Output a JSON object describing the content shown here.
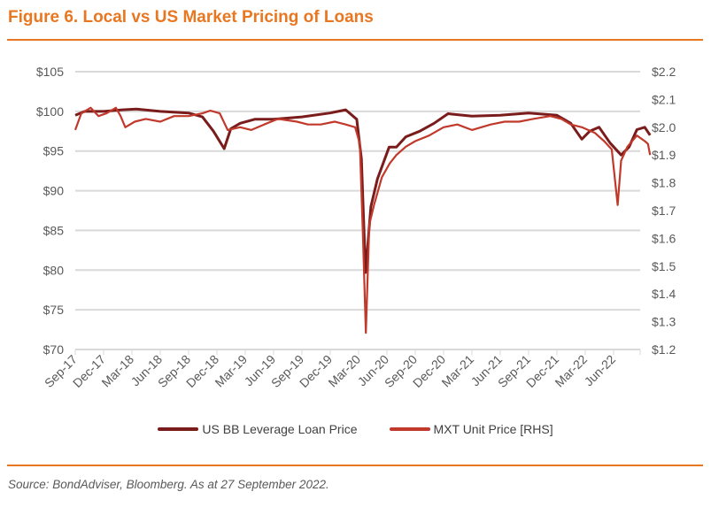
{
  "title": "Figure 6. Local vs US Market Pricing of Loans",
  "source": "Source: BondAdviser, Bloomberg. As at 27 September 2022.",
  "chart_data": {
    "type": "line",
    "title": "Figure 6. Local vs US Market Pricing of Loans",
    "y_left": {
      "range": [
        70,
        105
      ],
      "ticks": [
        "$70",
        "$75",
        "$80",
        "$85",
        "$90",
        "$95",
        "$100",
        "$105"
      ],
      "values": [
        70,
        75,
        80,
        85,
        90,
        95,
        100,
        105
      ]
    },
    "y_right": {
      "range": [
        1.2,
        2.2
      ],
      "ticks": [
        "$1.2",
        "$1.3",
        "$1.4",
        "$1.5",
        "$1.6",
        "$1.7",
        "$1.8",
        "$1.9",
        "$2.0",
        "$2.1",
        "$2.2"
      ],
      "values": [
        1.2,
        1.3,
        1.4,
        1.5,
        1.6,
        1.7,
        1.8,
        1.9,
        2.0,
        2.1,
        2.2
      ]
    },
    "x_ticks": [
      "Sep-17",
      "Dec-17",
      "Mar-18",
      "Jun-18",
      "Sep-18",
      "Dec-18",
      "Mar-19",
      "Jun-19",
      "Sep-19",
      "Dec-19",
      "Mar-20",
      "Jun-20",
      "Sep-20",
      "Dec-20",
      "Mar-21",
      "Jun-21",
      "Sep-21",
      "Dec-21",
      "Mar-22",
      "Jun-22"
    ],
    "grid": "horizontal",
    "legend": "bottom",
    "series": [
      {
        "name": "US BB Leverage Loan Price",
        "axis": "left",
        "color": "#7b1c1c",
        "points": [
          [
            "2017-09-01",
            99.5
          ],
          [
            "2017-10-01",
            100
          ],
          [
            "2017-12-01",
            100
          ],
          [
            "2018-02-01",
            100.2
          ],
          [
            "2018-03-15",
            100.3
          ],
          [
            "2018-06-01",
            100
          ],
          [
            "2018-09-01",
            99.8
          ],
          [
            "2018-10-15",
            99.3
          ],
          [
            "2018-11-20",
            97.5
          ],
          [
            "2018-12-24",
            95.3
          ],
          [
            "2019-01-15",
            97.8
          ],
          [
            "2019-02-15",
            98.5
          ],
          [
            "2019-04-01",
            99
          ],
          [
            "2019-06-01",
            99
          ],
          [
            "2019-09-01",
            99.3
          ],
          [
            "2019-12-01",
            99.8
          ],
          [
            "2020-01-20",
            100.2
          ],
          [
            "2020-02-25",
            99
          ],
          [
            "2020-03-10",
            94
          ],
          [
            "2020-03-23",
            79.7
          ],
          [
            "2020-04-10",
            88
          ],
          [
            "2020-05-01",
            91.5
          ],
          [
            "2020-06-08",
            95.5
          ],
          [
            "2020-07-01",
            95.5
          ],
          [
            "2020-08-01",
            96.8
          ],
          [
            "2020-09-15",
            97.5
          ],
          [
            "2020-11-01",
            98.5
          ],
          [
            "2020-12-15",
            99.7
          ],
          [
            "2021-03-01",
            99.4
          ],
          [
            "2021-06-01",
            99.5
          ],
          [
            "2021-09-01",
            99.8
          ],
          [
            "2021-12-01",
            99.5
          ],
          [
            "2022-01-15",
            98.5
          ],
          [
            "2022-02-20",
            96.5
          ],
          [
            "2022-03-15",
            97.5
          ],
          [
            "2022-04-15",
            98
          ],
          [
            "2022-05-20",
            96
          ],
          [
            "2022-06-25",
            94.5
          ],
          [
            "2022-07-20",
            95.5
          ],
          [
            "2022-08-15",
            97.7
          ],
          [
            "2022-09-10",
            98
          ],
          [
            "2022-09-27",
            97
          ]
        ]
      },
      {
        "name": "MXT Unit Price [RHS]",
        "axis": "right",
        "color": "#c0392b",
        "points": [
          [
            "2017-09-01",
            1.99
          ],
          [
            "2017-09-20",
            2.05
          ],
          [
            "2017-10-20",
            2.07
          ],
          [
            "2017-11-15",
            2.04
          ],
          [
            "2017-12-10",
            2.05
          ],
          [
            "2018-01-10",
            2.07
          ],
          [
            "2018-01-25",
            2.04
          ],
          [
            "2018-02-10",
            2.0
          ],
          [
            "2018-03-10",
            2.02
          ],
          [
            "2018-04-15",
            2.03
          ],
          [
            "2018-06-01",
            2.02
          ],
          [
            "2018-07-15",
            2.04
          ],
          [
            "2018-09-01",
            2.04
          ],
          [
            "2018-10-15",
            2.05
          ],
          [
            "2018-11-10",
            2.06
          ],
          [
            "2018-12-10",
            2.05
          ],
          [
            "2019-01-05",
            1.99
          ],
          [
            "2019-02-15",
            2.0
          ],
          [
            "2019-03-20",
            1.99
          ],
          [
            "2019-05-01",
            2.01
          ],
          [
            "2019-06-15",
            2.03
          ],
          [
            "2019-08-15",
            2.02
          ],
          [
            "2019-09-20",
            2.01
          ],
          [
            "2019-11-01",
            2.01
          ],
          [
            "2019-12-15",
            2.02
          ],
          [
            "2020-01-20",
            2.01
          ],
          [
            "2020-02-20",
            2.0
          ],
          [
            "2020-03-05",
            1.94
          ],
          [
            "2020-03-15",
            1.6
          ],
          [
            "2020-03-24",
            1.26
          ],
          [
            "2020-04-05",
            1.65
          ],
          [
            "2020-04-20",
            1.72
          ],
          [
            "2020-05-15",
            1.82
          ],
          [
            "2020-06-10",
            1.87
          ],
          [
            "2020-07-01",
            1.9
          ],
          [
            "2020-08-01",
            1.93
          ],
          [
            "2020-09-01",
            1.95
          ],
          [
            "2020-10-15",
            1.97
          ],
          [
            "2020-12-01",
            2.0
          ],
          [
            "2021-01-15",
            2.01
          ],
          [
            "2021-03-01",
            1.99
          ],
          [
            "2021-05-01",
            2.01
          ],
          [
            "2021-06-15",
            2.02
          ],
          [
            "2021-08-01",
            2.02
          ],
          [
            "2021-09-15",
            2.03
          ],
          [
            "2021-11-10",
            2.04
          ],
          [
            "2021-12-15",
            2.03
          ],
          [
            "2022-01-15",
            2.01
          ],
          [
            "2022-02-20",
            2.0
          ],
          [
            "2022-04-01",
            1.98
          ],
          [
            "2022-05-01",
            1.95
          ],
          [
            "2022-05-25",
            1.92
          ],
          [
            "2022-06-14",
            1.72
          ],
          [
            "2022-06-25",
            1.88
          ],
          [
            "2022-07-15",
            1.93
          ],
          [
            "2022-08-15",
            1.97
          ],
          [
            "2022-09-10",
            1.95
          ],
          [
            "2022-09-20",
            1.94
          ],
          [
            "2022-09-27",
            1.9
          ]
        ]
      }
    ]
  }
}
